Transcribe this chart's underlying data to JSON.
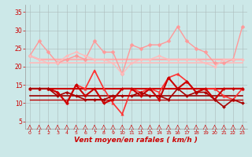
{
  "x": [
    0,
    1,
    2,
    3,
    4,
    5,
    6,
    7,
    8,
    9,
    10,
    11,
    12,
    13,
    14,
    15,
    16,
    17,
    18,
    19,
    20,
    21,
    22,
    23
  ],
  "series": [
    {
      "label": "rafales_top",
      "values": [
        23,
        27,
        24,
        21,
        22,
        23,
        22,
        27,
        24,
        24,
        18,
        26,
        25,
        26,
        26,
        27,
        31,
        27,
        25,
        24,
        21,
        21,
        22,
        31
      ],
      "color": "#ff9999",
      "lw": 1.0,
      "marker": "D",
      "ms": 2.5,
      "zorder": 3
    },
    {
      "label": "rafales_trend1",
      "values": [
        23,
        22,
        22,
        22,
        22,
        22,
        22,
        22,
        22,
        22,
        22,
        22,
        22,
        22,
        22,
        22,
        22,
        22,
        22,
        22,
        22,
        22,
        22,
        22
      ],
      "color": "#ffaaaa",
      "lw": 1.5,
      "marker": null,
      "ms": 0,
      "zorder": 2
    },
    {
      "label": "rafales_trend2",
      "values": [
        21,
        21,
        21,
        21,
        21,
        21,
        21,
        21,
        21,
        21,
        21,
        21,
        21,
        21,
        21,
        21,
        21,
        21,
        21,
        21,
        21,
        21,
        21,
        21
      ],
      "color": "#ffbbbb",
      "lw": 1.2,
      "marker": null,
      "ms": 0,
      "zorder": 2
    },
    {
      "label": "rafales_mid",
      "values": [
        23,
        22,
        21,
        21,
        23,
        24,
        23,
        22,
        22,
        21,
        18,
        21,
        22,
        22,
        23,
        22,
        22,
        22,
        22,
        21,
        20,
        22,
        22,
        22
      ],
      "color": "#ffbbbb",
      "lw": 1.0,
      "marker": "D",
      "ms": 2.0,
      "zorder": 3
    },
    {
      "label": "wind_gust_spiky",
      "values": [
        14,
        14,
        14,
        13,
        10,
        15,
        14,
        19,
        14,
        10,
        7,
        14,
        13,
        14,
        13,
        17,
        18,
        16,
        13,
        14,
        14,
        12,
        11,
        14
      ],
      "color": "#ff3333",
      "lw": 1.2,
      "marker": "^",
      "ms": 2.5,
      "zorder": 4
    },
    {
      "label": "wind_mean1",
      "values": [
        14,
        14,
        14,
        13,
        10,
        15,
        12,
        14,
        10,
        11,
        14,
        14,
        12,
        14,
        11,
        17,
        14,
        16,
        13,
        14,
        11,
        14,
        14,
        14
      ],
      "color": "#cc0000",
      "lw": 1.5,
      "marker": "D",
      "ms": 2.0,
      "zorder": 4
    },
    {
      "label": "wind_mean2",
      "values": [
        14,
        14,
        14,
        12,
        13,
        12,
        11,
        11,
        11,
        12,
        12,
        12,
        13,
        12,
        12,
        11,
        14,
        12,
        13,
        13,
        11,
        9,
        11,
        10
      ],
      "color": "#aa0000",
      "lw": 1.2,
      "marker": "D",
      "ms": 2.0,
      "zorder": 4
    },
    {
      "label": "wind_base_high",
      "values": [
        14,
        14,
        14,
        14,
        14,
        14,
        14,
        14,
        14,
        14,
        14,
        14,
        14,
        14,
        14,
        14,
        14,
        14,
        14,
        14,
        14,
        14,
        14,
        14
      ],
      "color": "#cc0000",
      "lw": 1.5,
      "marker": null,
      "ms": 0,
      "zorder": 2
    },
    {
      "label": "wind_base_low",
      "values": [
        12,
        12,
        12,
        12,
        12,
        12,
        12,
        12,
        12,
        12,
        12,
        12,
        12,
        12,
        12,
        12,
        12,
        12,
        12,
        12,
        12,
        12,
        12,
        12
      ],
      "color": "#990000",
      "lw": 1.2,
      "marker": null,
      "ms": 0,
      "zorder": 2
    },
    {
      "label": "wind_base_mid",
      "values": [
        11,
        11,
        11,
        11,
        11,
        11,
        11,
        11,
        11,
        11,
        11,
        11,
        11,
        11,
        11,
        11,
        11,
        11,
        11,
        11,
        11,
        11,
        11,
        11
      ],
      "color": "#bb0000",
      "lw": 1.0,
      "marker": null,
      "ms": 0,
      "zorder": 2
    }
  ],
  "xlabel": "Vent moyen/en rafales ( km/h )",
  "xlim_min": -0.5,
  "xlim_max": 23.5,
  "ylim_min": 3,
  "ylim_max": 37,
  "yticks": [
    5,
    10,
    15,
    20,
    25,
    30,
    35
  ],
  "xticks": [
    0,
    1,
    2,
    3,
    4,
    5,
    6,
    7,
    8,
    9,
    10,
    11,
    12,
    13,
    14,
    15,
    16,
    17,
    18,
    19,
    20,
    21,
    22,
    23
  ],
  "bg_color": "#cce8e8",
  "grid_color": "#aabbbb",
  "xlabel_color": "#cc0000",
  "tick_color": "#cc0000",
  "arrow_color": "#cc0000"
}
